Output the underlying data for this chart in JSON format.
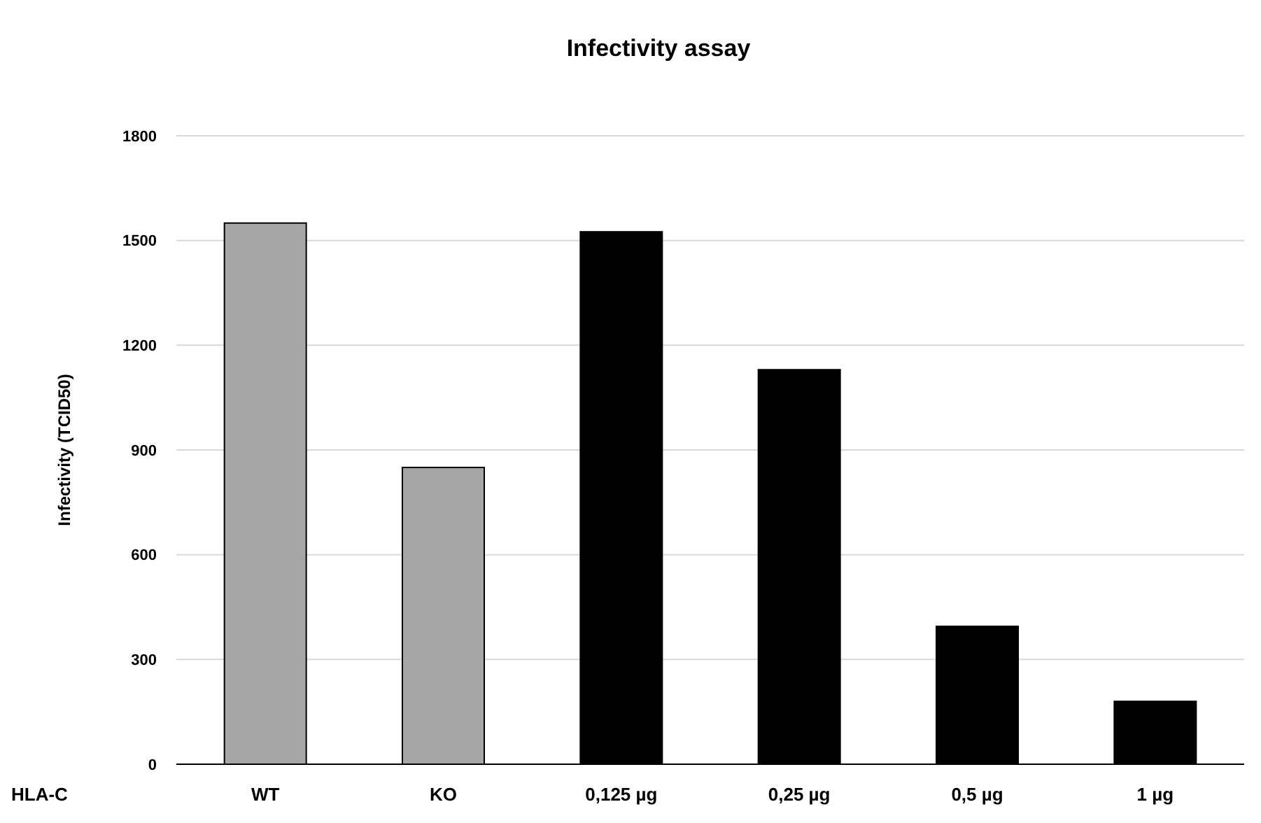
{
  "chart_data": {
    "type": "bar",
    "title": "Infectivity assay",
    "xlabel": "HLA-C",
    "ylabel": "Infectivity (TCID50)",
    "categories": [
      "WT",
      "KO",
      "0,125 µg",
      "0,25 µg",
      "0,5 µg",
      "1 µg"
    ],
    "values": [
      1550,
      850,
      1525,
      1130,
      395,
      180
    ],
    "colors": [
      "#a6a6a6",
      "#a6a6a6",
      "#000000",
      "#000000",
      "#000000",
      "#000000"
    ],
    "ylim": [
      0,
      1800
    ],
    "yticks": [
      0,
      300,
      600,
      900,
      1200,
      1500,
      1800
    ],
    "grid": "y"
  }
}
